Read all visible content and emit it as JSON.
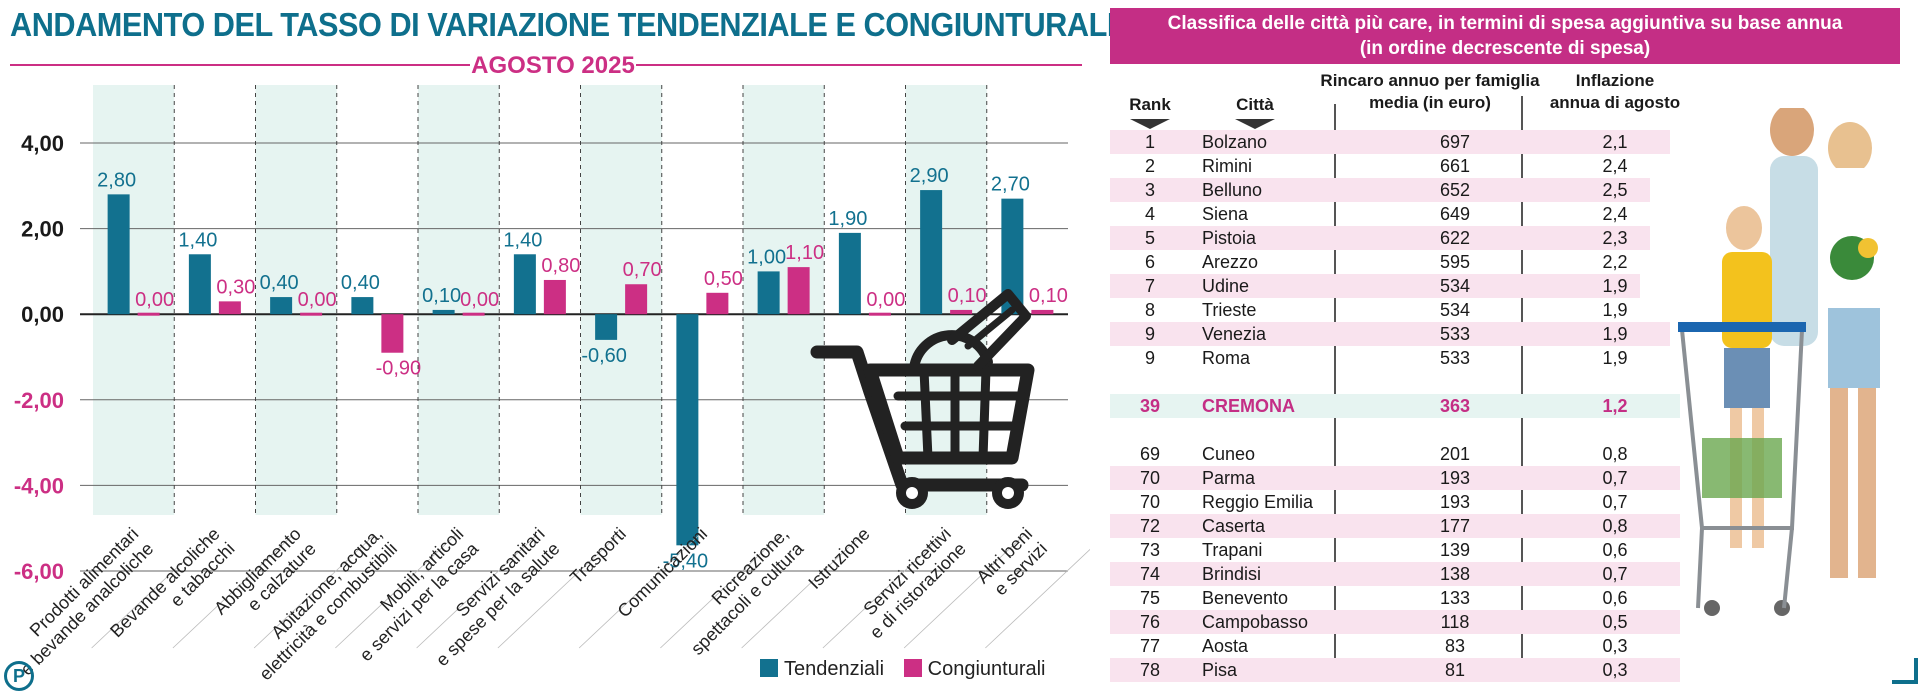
{
  "left_panel": {
    "title": "ANDAMENTO DEL TASSO DI VARIAZIONE TENDENZIALE E CONGIUNTURALE",
    "period": "AGOSTO 2025",
    "logo": "P"
  },
  "chart_data": {
    "type": "bar",
    "title": "ANDAMENTO DEL TASSO DI VARIAZIONE TENDENZIALE E CONGIUNTURALE",
    "subtitle": "AGOSTO 2025",
    "categories": [
      [
        "Prodotti alimentari",
        "e bevande analcoliche"
      ],
      [
        "Bevande alcoliche",
        "e tabacchi"
      ],
      [
        "Abbigliamento",
        "e calzature"
      ],
      [
        "Abitazione, acqua,",
        "elettricità e combustibili"
      ],
      [
        "Mobili, articoli",
        "e servizi per la casa"
      ],
      [
        "Servizi sanitari",
        "e spese per la salute"
      ],
      [
        "Trasporti"
      ],
      [
        "Comunicazioni"
      ],
      [
        "Ricreazione,",
        "spettacoli e cultura"
      ],
      [
        "Istruzione"
      ],
      [
        "Servizi ricettivi",
        "e di ristorazione"
      ],
      [
        "Altri beni",
        "e servizi"
      ]
    ],
    "series": [
      {
        "name": "Tendenziali",
        "color": "#12718f",
        "values": [
          2.8,
          1.4,
          0.4,
          0.4,
          0.1,
          1.4,
          -0.6,
          -5.4,
          1.0,
          1.9,
          2.9,
          2.7
        ],
        "labels": [
          "2,80",
          "1,40",
          "0,40",
          "0,40",
          "0,10",
          "1,40",
          "-0,60",
          "-5,40",
          "1,00",
          "1,90",
          "2,90",
          "2,70"
        ]
      },
      {
        "name": "Congiunturali",
        "color": "#cc2f84",
        "values": [
          0.0,
          0.3,
          0.0,
          -0.9,
          0.0,
          0.8,
          0.7,
          0.5,
          1.1,
          0.0,
          0.1,
          0.1
        ],
        "labels": [
          "0,00",
          "0,30",
          "0,00",
          "-0,90",
          "0,00",
          "0,80",
          "0,70",
          "0,50",
          "1,10",
          "0,00",
          "0,10",
          "0,10"
        ]
      }
    ],
    "ylim": [
      -6,
      4
    ],
    "yticks": [
      4,
      2,
      0,
      -2,
      -4,
      -6
    ],
    "ytick_labels": [
      "4,00",
      "2,00",
      "0,00",
      "-2,00",
      "-4,00",
      "-6,00"
    ],
    "legend": [
      "Tendenziali",
      "Congiunturali"
    ],
    "legend_position": "bottom-right",
    "grid": true
  },
  "ranking": {
    "title_line1": "Classifica delle città più care, in termini di spesa aggiuntiva su base annua",
    "title_line2": "(in ordine decrescente di spesa)",
    "col_rank": "Rank",
    "col_city": "Città",
    "col_euro_1": "Rincaro annuo per famiglia",
    "col_euro_2": "media (in euro)",
    "col_infl_1": "Inflazione",
    "col_infl_2": "annua di agosto",
    "rows": [
      {
        "rank": "1",
        "city": "Bolzano",
        "euro": "697",
        "infl": "2,1"
      },
      {
        "rank": "2",
        "city": "Rimini",
        "euro": "661",
        "infl": "2,4"
      },
      {
        "rank": "3",
        "city": "Belluno",
        "euro": "652",
        "infl": "2,5"
      },
      {
        "rank": "4",
        "city": "Siena",
        "euro": "649",
        "infl": "2,4"
      },
      {
        "rank": "5",
        "city": "Pistoia",
        "euro": "622",
        "infl": "2,3"
      },
      {
        "rank": "6",
        "city": "Arezzo",
        "euro": "595",
        "infl": "2,2"
      },
      {
        "rank": "7",
        "city": "Udine",
        "euro": "534",
        "infl": "1,9"
      },
      {
        "rank": "8",
        "city": "Trieste",
        "euro": "534",
        "infl": "1,9"
      },
      {
        "rank": "9",
        "city": "Venezia",
        "euro": "533",
        "infl": "1,9"
      },
      {
        "rank": "9",
        "city": "Roma",
        "euro": "533",
        "infl": "1,9"
      }
    ],
    "highlight": {
      "rank": "39",
      "city": "CREMONA",
      "euro": "363",
      "infl": "1,2"
    },
    "bottom_rows": [
      {
        "rank": "69",
        "city": "Cuneo",
        "euro": "201",
        "infl": "0,8"
      },
      {
        "rank": "70",
        "city": "Parma",
        "euro": "193",
        "infl": "0,7"
      },
      {
        "rank": "70",
        "city": "Reggio Emilia",
        "euro": "193",
        "infl": "0,7"
      },
      {
        "rank": "72",
        "city": "Caserta",
        "euro": "177",
        "infl": "0,8"
      },
      {
        "rank": "73",
        "city": "Trapani",
        "euro": "139",
        "infl": "0,6"
      },
      {
        "rank": "74",
        "city": "Brindisi",
        "euro": "138",
        "infl": "0,7"
      },
      {
        "rank": "75",
        "city": "Benevento",
        "euro": "133",
        "infl": "0,6"
      },
      {
        "rank": "76",
        "city": "Campobasso",
        "euro": "118",
        "infl": "0,5"
      },
      {
        "rank": "77",
        "city": "Aosta",
        "euro": "83",
        "infl": "0,3"
      },
      {
        "rank": "78",
        "city": "Pisa",
        "euro": "81",
        "infl": "0,3"
      }
    ]
  },
  "colors": {
    "accent_blue": "#12718f",
    "accent_pink": "#cc2f84",
    "header_magenta": "#c42e85",
    "band": "#e6f4f1",
    "row_tint": "#f9e3ee"
  },
  "icons": {
    "cart": "shopping-cart-icon",
    "family": "family-shopping-illustration"
  }
}
